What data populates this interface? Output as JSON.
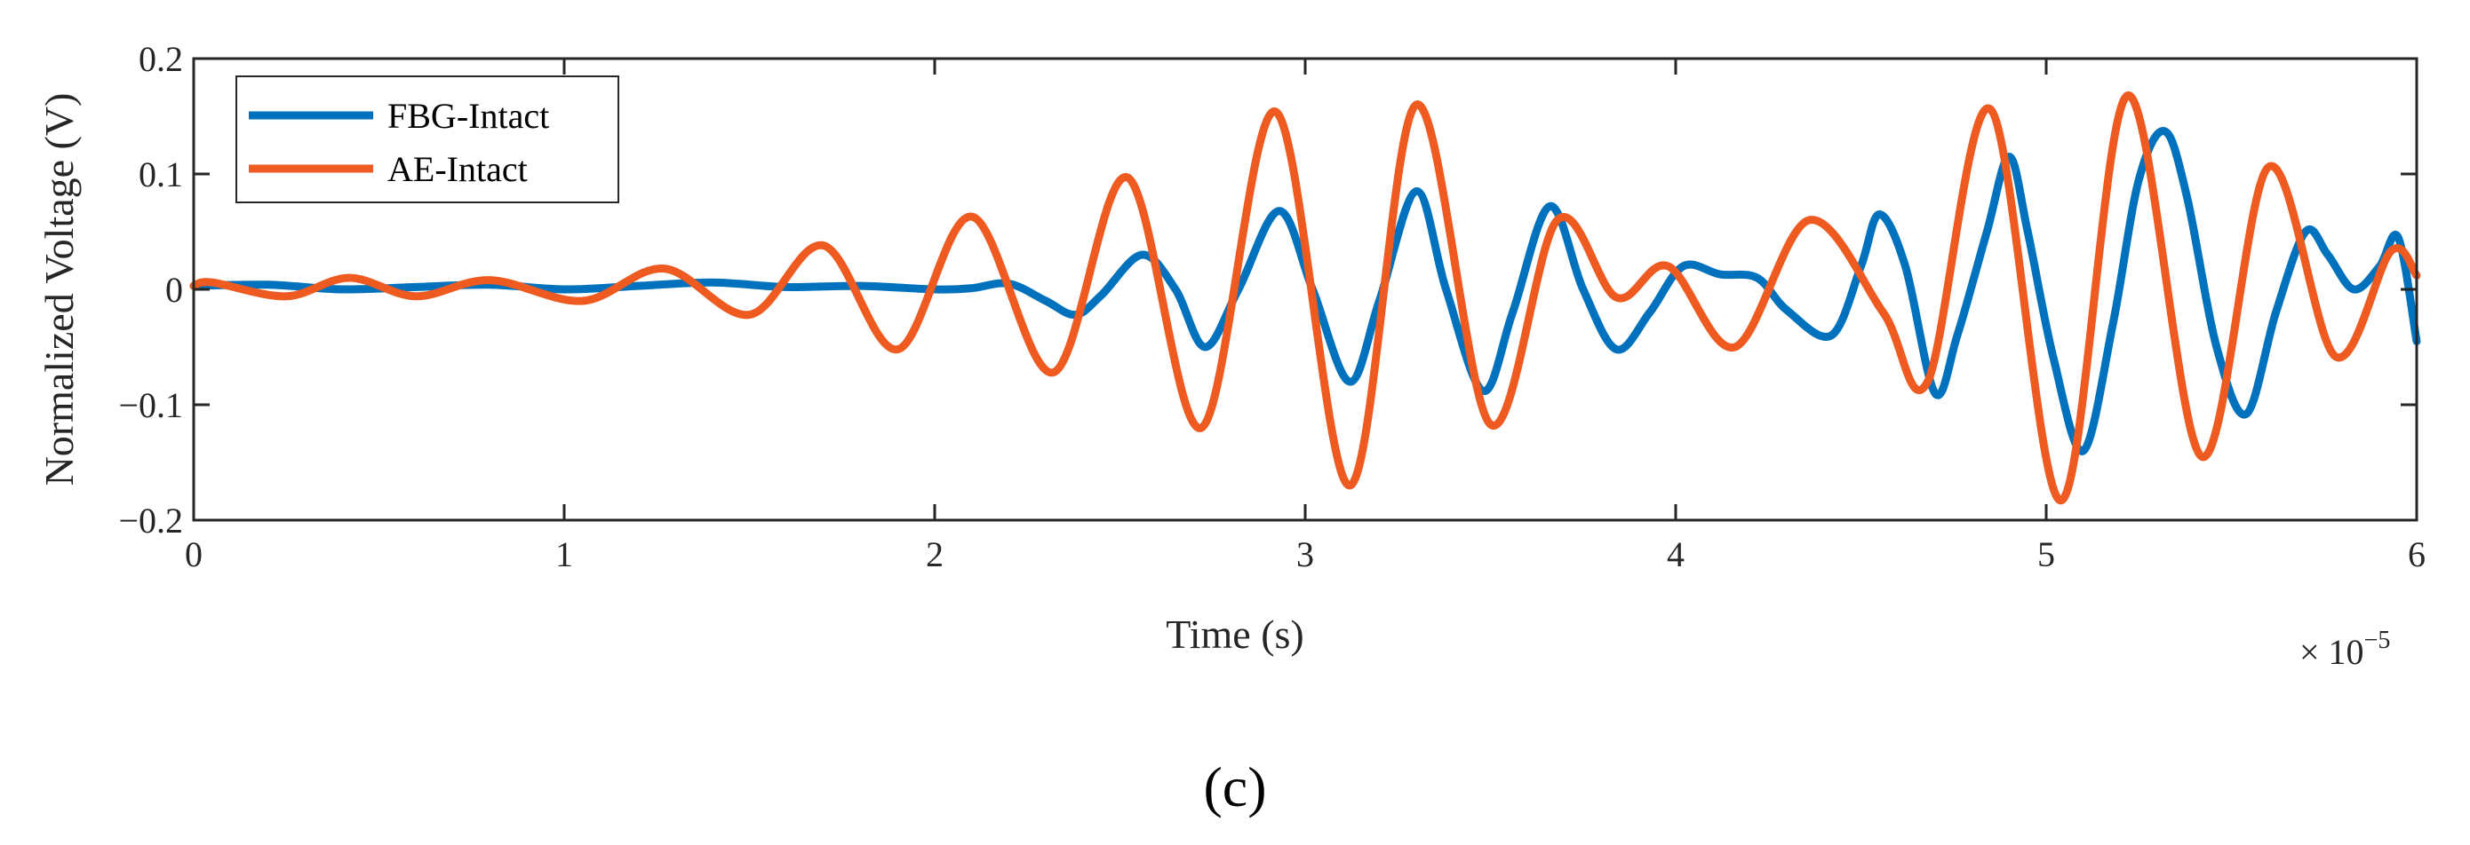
{
  "chart_data": {
    "type": "line",
    "xlabel": "Time (s)",
    "ylabel": "Normalized Voltage (V)",
    "x_multiplier": {
      "prefix": "× 10",
      "exponent": "−5"
    },
    "xlim": [
      0,
      6
    ],
    "ylim": [
      -0.2,
      0.2
    ],
    "xticks": [
      0,
      1,
      2,
      3,
      4,
      5,
      6
    ],
    "xtick_labels": [
      "0",
      "1",
      "2",
      "3",
      "4",
      "5",
      "6"
    ],
    "yticks": [
      -0.2,
      -0.1,
      0,
      0.1,
      0.2
    ],
    "ytick_labels": [
      "−0.2",
      "−0.1",
      "0",
      "0.1",
      "0.2"
    ],
    "grid": false,
    "legend_position": "top-left",
    "series": [
      {
        "name": "FBG-Intact",
        "color": "#0072BD",
        "x": [
          0.0,
          0.2,
          0.4,
          0.6,
          0.8,
          1.0,
          1.2,
          1.4,
          1.6,
          1.8,
          2.0,
          2.1,
          2.2,
          2.3,
          2.38,
          2.45,
          2.56,
          2.65,
          2.73,
          2.82,
          2.93,
          3.02,
          3.12,
          3.2,
          3.3,
          3.38,
          3.48,
          3.56,
          3.66,
          3.75,
          3.84,
          3.93,
          4.02,
          4.12,
          4.22,
          4.3,
          4.42,
          4.5,
          4.55,
          4.62,
          4.7,
          4.76,
          4.84,
          4.9,
          4.95,
          5.02,
          5.1,
          5.18,
          5.25,
          5.32,
          5.38,
          5.46,
          5.54,
          5.62,
          5.7,
          5.76,
          5.83,
          5.9,
          5.95,
          6.0
        ],
        "y": [
          0.003,
          0.004,
          0.0,
          0.002,
          0.004,
          0.0,
          0.003,
          0.006,
          0.002,
          0.003,
          0.0,
          0.001,
          0.005,
          -0.01,
          -0.022,
          -0.005,
          0.03,
          0.0,
          -0.05,
          0.0,
          0.068,
          0.0,
          -0.08,
          -0.01,
          0.085,
          0.0,
          -0.088,
          -0.02,
          0.072,
          0.0,
          -0.052,
          -0.02,
          0.02,
          0.013,
          0.01,
          -0.018,
          -0.04,
          0.02,
          0.065,
          0.02,
          -0.09,
          -0.04,
          0.05,
          0.115,
          0.05,
          -0.06,
          -0.14,
          -0.03,
          0.095,
          0.137,
          0.08,
          -0.05,
          -0.108,
          -0.02,
          0.05,
          0.03,
          0.0,
          0.02,
          0.045,
          -0.045
        ]
      },
      {
        "name": "AE-Intact",
        "color": "#EE5A1F",
        "x": [
          0.0,
          0.05,
          0.25,
          0.42,
          0.6,
          0.8,
          1.05,
          1.27,
          1.5,
          1.7,
          1.9,
          2.1,
          2.32,
          2.52,
          2.72,
          2.92,
          3.12,
          3.3,
          3.5,
          3.68,
          3.84,
          3.98,
          4.16,
          4.36,
          4.56,
          4.68,
          4.85,
          5.04,
          5.22,
          5.42,
          5.6,
          5.78,
          5.93,
          6.0
        ],
        "y": [
          0.003,
          0.006,
          -0.006,
          0.01,
          -0.006,
          0.008,
          -0.01,
          0.018,
          -0.022,
          0.038,
          -0.052,
          0.063,
          -0.072,
          0.097,
          -0.12,
          0.154,
          -0.17,
          0.16,
          -0.117,
          0.06,
          -0.007,
          0.02,
          -0.05,
          0.06,
          -0.02,
          -0.08,
          0.156,
          -0.183,
          0.168,
          -0.145,
          0.106,
          -0.058,
          0.033,
          0.012
        ]
      }
    ]
  },
  "panel_label": "(c)"
}
